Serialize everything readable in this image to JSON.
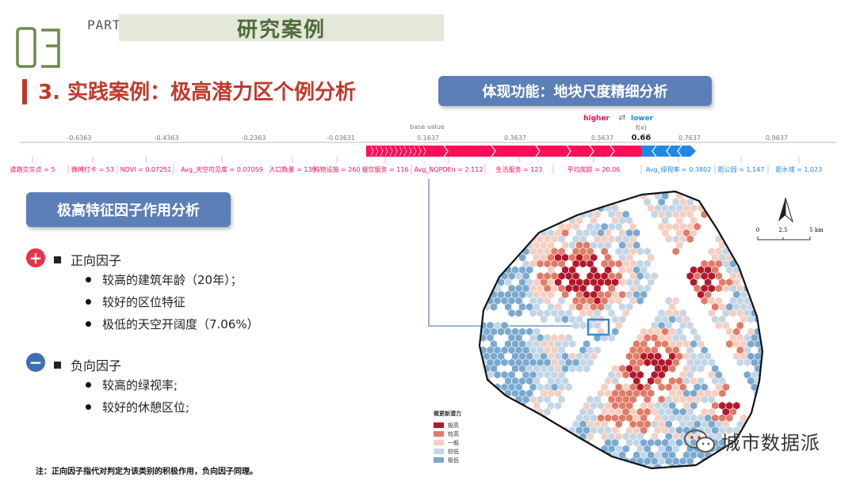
{
  "header": {
    "section_number": "03",
    "part_label": "PART",
    "section_title": "研究案例"
  },
  "title": "3. 实践案例：极高潜力区个例分析",
  "function_badge": "体现功能：地块尺度精细分析",
  "force_plot": {
    "higher_label": "higher",
    "lower_label": "lower",
    "fx_label": "f(x)",
    "fx_value": "0.66",
    "base_value_label": "base value",
    "axis_ticks": [
      "-0.6363",
      "-0.4363",
      "-0.2363",
      "-0.03631",
      "0.1637",
      "0.3637",
      "0.5637",
      "0.7637",
      "0.9637"
    ],
    "positive_features": [
      "道路交叉点 = 5",
      "微博打卡 = 53",
      "NDVI = 0.07251",
      "Avg_天空可见度 = 0.07059",
      "人口数量 = 139",
      "购物设施 = 260",
      "餐饮服务 = 116",
      "Avg_NQPDEn = 2.112",
      "生活服务 = 123",
      "平均房龄 = 20.06"
    ],
    "negative_features": [
      "Avg_绿视率 = 0.3802",
      "距公园 = 1,147",
      "距水域 = 1,023"
    ],
    "colors": {
      "positive": "#ff0d57",
      "negative": "#1e88e5"
    }
  },
  "factor_badge": "极高特征因子作用分析",
  "positive": {
    "heading": "正向因子",
    "items": [
      "较高的建筑年龄（20年）；",
      "较好的区位特征",
      "极低的天空开阔度（7.06%）"
    ]
  },
  "negative": {
    "heading": "负向因子",
    "items": [
      "较高的绿视率;",
      "较好的休憩区位;"
    ]
  },
  "note": "注：正向因子指代对判定为该类别的积极作用，负向因子同理。",
  "map": {
    "scale_labels": [
      "0",
      "2.5",
      "5 km"
    ],
    "legend_title": "微更新潜力",
    "legend": [
      {
        "label": "极高",
        "color": "#b2182b"
      },
      {
        "label": "较高",
        "color": "#e07b66"
      },
      {
        "label": "一般",
        "color": "#f4cfc2"
      },
      {
        "label": "较低",
        "color": "#c3d6e6"
      },
      {
        "label": "极低",
        "color": "#7aa9cf"
      }
    ]
  },
  "watermark": "城市数据派"
}
